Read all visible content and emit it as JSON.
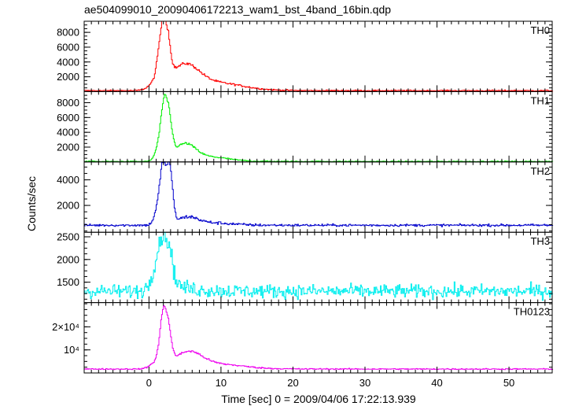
{
  "chart_data": {
    "type": "line",
    "title": "ae504099010_20090406172213_wam1_bst_4band_16bin.qdp",
    "xlabel": "Time [sec] 0 = 2009/04/06 17:22:13.939",
    "ylabel": "Counts/sec",
    "xlim": [
      -9,
      56
    ],
    "x_ticks": [
      0,
      10,
      20,
      30,
      40,
      50
    ],
    "x_tick_labels": [
      "0",
      "10",
      "20",
      "30",
      "40",
      "50"
    ],
    "panels": [
      {
        "name": "TH0",
        "color": "#ff0000",
        "ylim": [
          0,
          9500
        ],
        "ticks": [
          2000,
          4000,
          6000,
          8000
        ],
        "tick_labels": [
          "2000",
          "4000",
          "6000",
          "8000"
        ],
        "model": {
          "base": 130,
          "noise": 40,
          "peaks": [
            [
              0.8,
              0.9,
              900
            ],
            [
              1.8,
              0.55,
              7000
            ],
            [
              2.5,
              0.45,
              3800
            ],
            [
              5.0,
              1.9,
              2900
            ],
            [
              9.5,
              3.5,
              900
            ]
          ],
          "tail": [
            2.5,
            5.0,
            600
          ]
        }
      },
      {
        "name": "TH1",
        "color": "#00ee00",
        "ylim": [
          0,
          9500
        ],
        "ticks": [
          2000,
          4000,
          6000,
          8000
        ],
        "tick_labels": [
          "2000",
          "4000",
          "6000",
          "8000"
        ],
        "model": {
          "base": 60,
          "noise": 35,
          "peaks": [
            [
              1.2,
              0.5,
              1500
            ],
            [
              2.0,
              0.45,
              6500
            ],
            [
              2.7,
              0.45,
              4500
            ],
            [
              5.0,
              1.4,
              2000
            ],
            [
              8.5,
              2.5,
              500
            ]
          ],
          "tail": [
            2.5,
            4.0,
            500
          ]
        }
      },
      {
        "name": "TH2",
        "color": "#0000cc",
        "ylim": [
          -100,
          5400
        ],
        "ticks": [
          2000,
          4000
        ],
        "tick_labels": [
          "2000",
          "4000"
        ],
        "model": {
          "base": 450,
          "noise": 45,
          "peaks": [
            [
              1.2,
              0.5,
              1300
            ],
            [
              1.9,
              0.4,
              4200
            ],
            [
              2.8,
              0.4,
              4300
            ],
            [
              5.5,
              1.3,
              500
            ],
            [
              9.0,
              2.5,
              150
            ]
          ],
          "tail": [
            2.5,
            3.0,
            300
          ]
        }
      },
      {
        "name": "TH3",
        "color": "#00eeee",
        "ylim": [
          1050,
          2600
        ],
        "ticks": [
          1500,
          2000,
          2500
        ],
        "tick_labels": [
          "1500",
          "2000",
          "2500"
        ],
        "model": {
          "base": 1300,
          "noise": 75,
          "peaks": [
            [
              1.5,
              0.9,
              850
            ],
            [
              2.4,
              0.7,
              650
            ]
          ],
          "tail": [
            2.5,
            2.5,
            200
          ]
        }
      },
      {
        "name": "TH0123",
        "color": "#ee00ee",
        "ylim": [
          0,
          30500
        ],
        "ticks": [
          10000,
          20000
        ],
        "tick_labels": [
          "10⁴",
          "2×10⁴"
        ],
        "model": {
          "base": 1700,
          "noise": 120,
          "peaks": [
            [
              1.0,
              0.8,
              3000
            ],
            [
              1.9,
              0.45,
              20000
            ],
            [
              2.6,
              0.45,
              13000
            ],
            [
              5.5,
              1.8,
              6000
            ],
            [
              9.5,
              3.5,
              1800
            ]
          ],
          "tail": [
            2.5,
            5.0,
            1500
          ]
        }
      }
    ]
  }
}
